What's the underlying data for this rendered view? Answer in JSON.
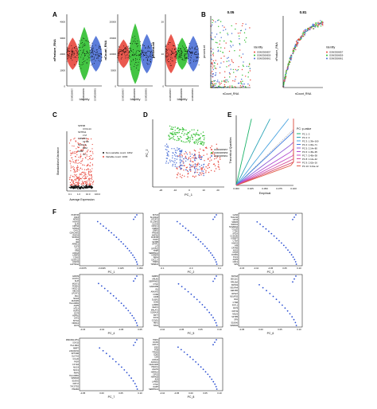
{
  "panels": {
    "A": {
      "letter": "A",
      "violins": [
        {
          "ylabel": "nFeature_RNA",
          "xlabel": "Identity",
          "ticks": [
            "0",
            "1000",
            "2000",
            "3000",
            "4000"
          ],
          "groups": [
            "GSM3306957",
            "GSM3306959",
            "GSM3306961"
          ]
        },
        {
          "ylabel": "nCount_RNA",
          "xlabel": "Identity",
          "ticks": [
            "0",
            "5000",
            "10000",
            "15000",
            "20000"
          ],
          "groups": [
            "GSM3306957",
            "GSM3306959",
            "GSM3306961"
          ]
        },
        {
          "ylabel": "percent.mt",
          "xlabel": "Identity",
          "ticks": [
            "0",
            "10",
            "20"
          ],
          "groups": [
            "GSM3306957",
            "GSM3306959",
            "GSM3306961"
          ]
        }
      ]
    },
    "B": {
      "letter": "B",
      "titles": [
        "0.05",
        "0.81"
      ],
      "ylabels": [
        "percent.mt",
        "nFeature_RNA"
      ],
      "xlabel": "nCount_RNA",
      "legend_title": "Identity",
      "legend": [
        "GSM3306957",
        "GSM3306959",
        "GSM3306961"
      ]
    },
    "C": {
      "letter": "C",
      "ylabel": "Standardized Variance",
      "xlabel": "Average Expression",
      "xticks": [
        "0.1",
        "1.0",
        "10.0",
        "100.0"
      ],
      "genes": [
        "SPP1B",
        "CXCL14",
        "SFTPA1",
        "LYZ",
        "TMSB4X",
        "CTSB",
        "SLC2A4",
        "B2M",
        "GIBP",
        "AC"
      ],
      "legend": [
        "Non-variable count: 1662",
        "Variable count: 1000"
      ]
    },
    "D": {
      "letter": "D",
      "xlabel": "PC_1",
      "ylabel": "PC_2",
      "xticks": [
        "-20",
        "-10",
        "0",
        "10",
        "20"
      ],
      "legend": [
        "GSM3306957",
        "GSM3306959",
        "GSM3306961"
      ]
    },
    "E": {
      "letter": "E",
      "ylabel": "Theoretical Quantiles",
      "xlabel": "Empirical",
      "xticks": [
        "0.000",
        "0.025",
        "0.050",
        "0.075",
        "0.100"
      ],
      "legend_title": "PC: p-value",
      "legend": [
        "PC 1: 0",
        "PC 2: 0",
        "PC 3: 1.39e-160",
        "PC 4: 1.00e-71",
        "PC 5: 2.14e-80",
        "PC 6: 1.45e-95",
        "PC 7: 5.45e-38",
        "PC 8: 1.14e-42",
        "PC 9: 2.62e-16",
        "PC 10: 3.44e-12"
      ]
    },
    "F": {
      "letter": "F",
      "loadings": [
        {
          "pc": "PC_1",
          "ticks": [
            "-0.0675",
            "-0.0025",
            "0.025",
            "0.050"
          ],
          "genes": [
            "PCDH15",
            "CSF3",
            "AP002",
            "ANXA3",
            "SLPI",
            "CDH12",
            "NTRK2",
            "GALC",
            "CEACAM1",
            "RNF24",
            "S100A4",
            "ID4",
            "ID2",
            "ARMC1",
            "ELF3",
            "CLU",
            "FN1",
            "ANXA3",
            "LAMP3",
            "CCND",
            "S100A11",
            "ANAX2",
            "LAPTM4A"
          ]
        },
        {
          "pc": "PC_2",
          "ticks": [
            "-0.1",
            "-0.0",
            "0.1"
          ],
          "genes": [
            "SFTA3",
            "SLC34A2",
            "LPCAT1",
            "SLC39A2",
            "ALOX5",
            "NKX2-1",
            "FABP4",
            "EMP1",
            "PRSS8",
            "NAPSA",
            "CLDN18",
            "HOPX",
            "SFTPB",
            "SFTPC",
            "LYZ",
            "SFTPA2",
            "TPPP",
            "SERPINA1",
            "IGFBP4",
            "RBP4",
            "CXCL17",
            "TIMP1",
            "TMSB4X"
          ]
        },
        {
          "pc": "PC_3",
          "ticks": [
            "-0.15",
            "-0.10",
            "-0.05",
            "0.05",
            "0.10"
          ],
          "genes": [
            "GAS6",
            "TAGLN2",
            "GPX3",
            "SMIM3",
            "WFDC2",
            "SCGB3A2",
            "CCL20",
            "CTSK",
            "MT2A",
            "CCDC80",
            "IGFBP7",
            "CTSA",
            "ANAX2",
            "VIM",
            "CRYAB",
            "ASS1",
            "C1QA",
            "CCNB1",
            "PLK1",
            "AQP5",
            "CDK1",
            "SFN"
          ]
        },
        {
          "pc": "PC_4",
          "ticks": [
            "-0.15",
            "-0.10",
            "-0.05",
            "0.05"
          ],
          "genes": [
            "ERP29",
            "COX7C",
            "SLPI",
            "MGST1",
            "PCBD1",
            "NKX2-1",
            "ABCA3",
            "LPCAT1",
            "PGC",
            "SNAI3",
            "ZFAND5",
            "HLA-DRB1",
            "AQP5",
            "MT1X",
            "HOPX",
            "CD74",
            "HSPB1",
            "CAV1",
            "SFTA2",
            "NDRG1",
            "CD74"
          ]
        },
        {
          "pc": "PC_5",
          "ticks": [
            "-0.10",
            "-0.05",
            "0.05",
            "0.10"
          ],
          "genes": [
            "CEBPD",
            "ARL4D",
            "SERPINE2",
            "CTGF",
            "GADD45B",
            "ID1",
            "ANAXA2",
            "FOSB",
            "JUNB",
            "DUSP1",
            "CD55",
            "LAMB3",
            "NEAT1",
            "MALAT1",
            "S100A10",
            "KRT7",
            "SOX4",
            "CCND1",
            "HBA1",
            "TPM1"
          ]
        },
        {
          "pc": "PC_6",
          "ticks": [
            "-0.05",
            "0.00",
            "0.05",
            "0.10"
          ],
          "genes": [
            "SNHG8",
            "SEC11C",
            "RPL36A",
            "SNHG9",
            "NDUFA4",
            "EEF1B2",
            "RPS27",
            "NDUFS5",
            "CDA",
            "CTSB",
            "FSTL1",
            "CD74",
            "KRT19",
            "MSLN",
            "SFTPB",
            "SFN",
            "S100A6",
            "SPRR1B"
          ]
        },
        {
          "pc": "PC_7",
          "ticks": [
            "-0.05",
            "0.00",
            "0.05",
            "0.10"
          ],
          "genes": [
            "MIRAN02-2HG",
            "SOX15",
            "HLA-DRA",
            "MMP7",
            "LINC00152",
            "SPTSSB",
            "SLC7A2",
            "CCL20",
            "PIGR",
            "FXYD3",
            "MUC4",
            "MUC1",
            "RNF6",
            "HLA-DRB1",
            "SPRR1B",
            "S100A2",
            "KRT17",
            "TACSTD2",
            "HMGB2"
          ]
        },
        {
          "pc": "PC_8",
          "ticks": [
            "-0.10",
            "-0.05",
            "0.00",
            "0.05",
            "0.10"
          ],
          "genes": [
            "TIMP1",
            "DCXR",
            "KRT17",
            "ESD",
            "FGB",
            "TP53I3",
            "CD82",
            "CD9",
            "ANXA3",
            "AKR1C1",
            "CEACAM6",
            "HMOX1",
            "ASAH1",
            "HSPA1A",
            "GPX2",
            "HSPA1B",
            "JUN",
            "LAMB3",
            "CTGF",
            "DAPP",
            "SERPINA1"
          ]
        }
      ]
    }
  },
  "colors": {
    "red": "#e8473c",
    "green": "#2fbf2f",
    "blue": "#4a6fd6",
    "black": "#111111"
  }
}
